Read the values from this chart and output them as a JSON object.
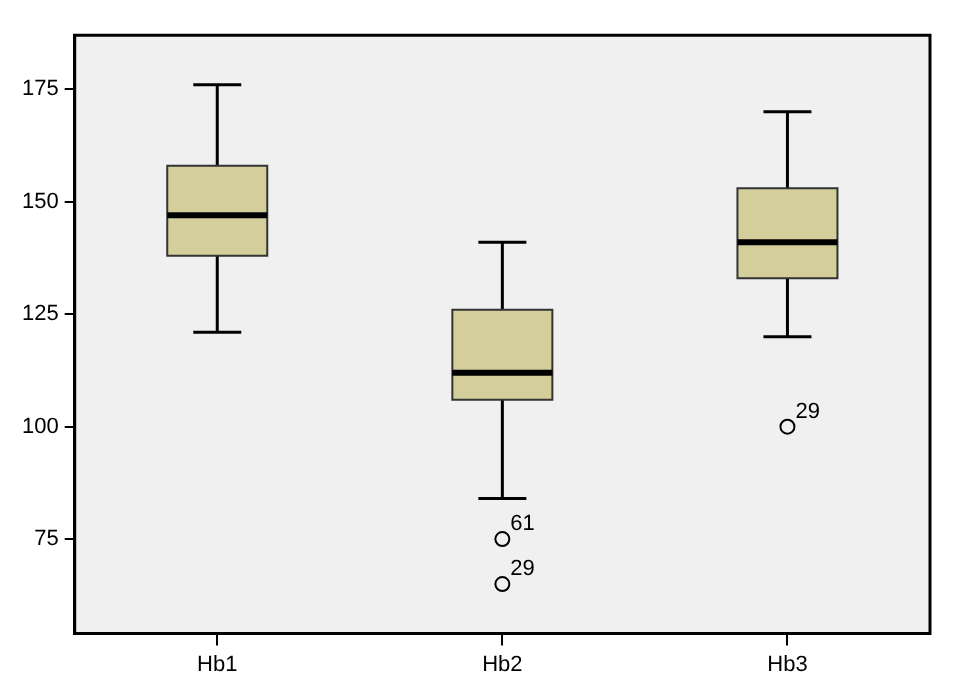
{
  "chart_data": {
    "type": "box",
    "categories": [
      "Hb1",
      "Hb2",
      "Hb3"
    ],
    "color": "#d4cf9a",
    "boxes": [
      {
        "low": 121,
        "q1": 138,
        "median": 147,
        "q3": 158,
        "high": 176
      },
      {
        "low": 84,
        "q1": 106,
        "median": 112,
        "q3": 126,
        "high": 141,
        "outliers": [
          75,
          65
        ]
      },
      {
        "low": 120,
        "q1": 133,
        "median": 141,
        "q3": 153,
        "high": 170,
        "outliers": [
          100
        ]
      }
    ],
    "ylim": [
      54,
      187
    ],
    "yticks": [
      75,
      100,
      125,
      150,
      175
    ],
    "annotations": [
      "61",
      "29",
      "29"
    ]
  }
}
